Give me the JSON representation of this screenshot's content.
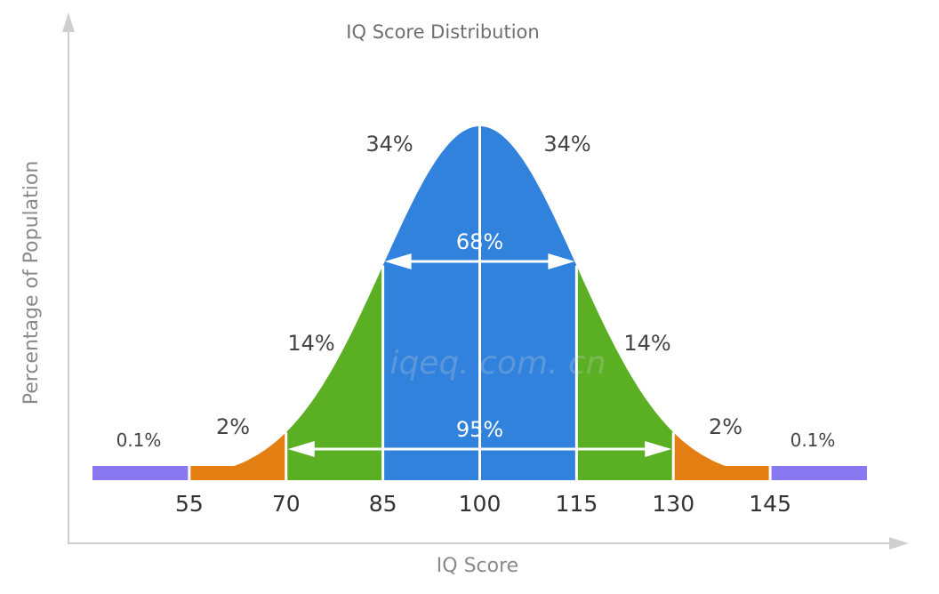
{
  "chart_data": {
    "type": "area",
    "title": "IQ Score Distribution",
    "xlabel": "IQ Score",
    "ylabel": "Percentage of Population",
    "x_ticks": [
      55,
      70,
      85,
      100,
      115,
      130,
      145
    ],
    "distribution": {
      "mean": 100,
      "sd": 15
    },
    "bands": [
      {
        "from": 40,
        "to": 55,
        "percent_label": "0.1%",
        "color": "#8a78f0"
      },
      {
        "from": 55,
        "to": 70,
        "percent_label": "2%",
        "color": "#e37f12"
      },
      {
        "from": 70,
        "to": 85,
        "percent_label": "14%",
        "color": "#5aaf23"
      },
      {
        "from": 85,
        "to": 100,
        "percent_label": "34%",
        "color": "#3182dc"
      },
      {
        "from": 100,
        "to": 115,
        "percent_label": "34%",
        "color": "#3182dc"
      },
      {
        "from": 115,
        "to": 130,
        "percent_label": "14%",
        "color": "#5aaf23"
      },
      {
        "from": 130,
        "to": 145,
        "percent_label": "2%",
        "color": "#e37f12"
      },
      {
        "from": 145,
        "to": 160,
        "percent_label": "0.1%",
        "color": "#8a78f0"
      }
    ],
    "spans": [
      {
        "from": 85,
        "to": 115,
        "label": "68%"
      },
      {
        "from": 70,
        "to": 130,
        "label": "95%"
      }
    ],
    "watermark": "iqeq. com. cn",
    "colors": {
      "axis": "#cfcfcf",
      "divider": "#ffffff"
    }
  }
}
